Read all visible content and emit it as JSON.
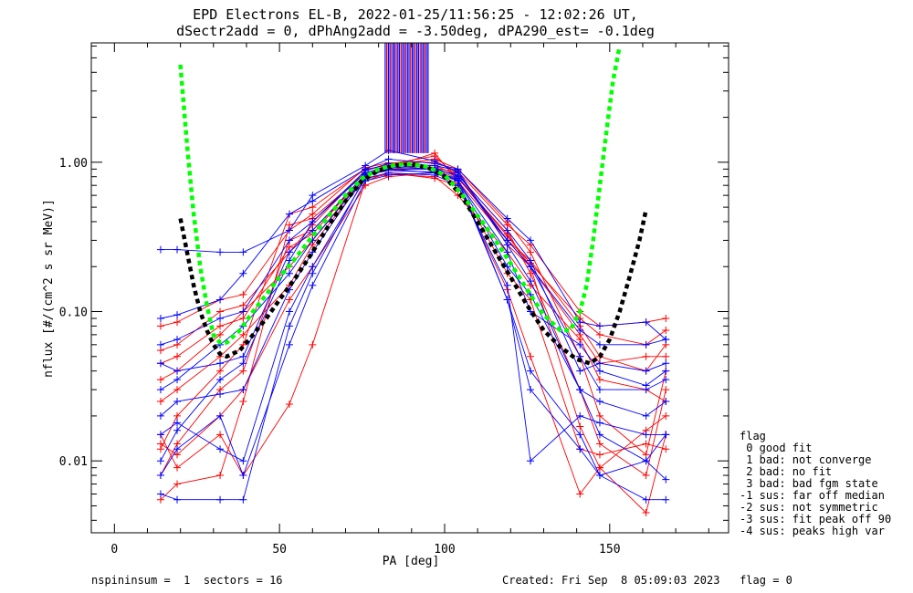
{
  "title_line1": "EPD Electrons EL-B, 2022-01-25/11:56:25 - 12:02:26 UT,",
  "title_line2": "dSectr2add = 0, dPhAng2add = -3.50deg, dPA290_est=  -0.1deg",
  "footer_left": "nspininsum =  1  sectors = 16",
  "footer_right": "Created: Fri Sep  8 05:09:03 2023   flag = 0",
  "legend": {
    "title": "flag",
    "entries": [
      " 0 good fit",
      " 1 bad: not converge",
      " 2 bad: no fit",
      " 3 bad: bad fgm state",
      "-1 sus: far off median",
      "-2 sus: not symmetric",
      "-3 sus: fit peak off 90",
      "-4 sus: peaks high var"
    ]
  },
  "colors": {
    "red_series": "#ff0000",
    "blue_series": "#0000ff",
    "fit_green": "#00ff00",
    "fit_black": "#000000"
  },
  "chart_data": {
    "type": "line",
    "xlabel": "PA [deg]",
    "ylabel": "nflux [#/(cm^2 s sr MeV)]",
    "xlim": [
      -7,
      186
    ],
    "ylim": [
      0.0033,
      6.3
    ],
    "yscale": "log",
    "xticks": [
      0,
      50,
      100,
      150
    ],
    "yticks": [
      0.01,
      0.1,
      1.0
    ],
    "yticklabels": [
      "0.01",
      "0.10",
      "1.00"
    ],
    "x_sectors": [
      14,
      19,
      32,
      39,
      53,
      60,
      76,
      83,
      97,
      104,
      119,
      126,
      141,
      147,
      161,
      167
    ],
    "series": [
      {
        "color": "red",
        "values": [
          0.0055,
          0.007,
          0.008,
          0.025,
          0.38,
          0.42,
          0.85,
          0.88,
          0.92,
          0.85,
          0.28,
          0.2,
          0.017,
          0.009,
          0.0045,
          0.015
        ]
      },
      {
        "color": "red",
        "values": [
          0.008,
          0.013,
          0.03,
          0.04,
          0.3,
          0.35,
          0.8,
          0.9,
          0.95,
          0.82,
          0.35,
          0.18,
          0.03,
          0.013,
          0.008,
          0.03
        ]
      },
      {
        "color": "red",
        "values": [
          0.012,
          0.02,
          0.04,
          0.06,
          0.45,
          0.5,
          0.9,
          0.95,
          1.05,
          0.9,
          0.4,
          0.25,
          0.05,
          0.02,
          0.011,
          0.04
        ]
      },
      {
        "color": "red",
        "values": [
          0.035,
          0.04,
          0.07,
          0.1,
          0.2,
          0.3,
          0.82,
          0.92,
          1.15,
          0.75,
          0.3,
          0.22,
          0.08,
          0.05,
          0.04,
          0.06
        ]
      },
      {
        "color": "red",
        "values": [
          0.055,
          0.06,
          0.1,
          0.11,
          0.25,
          0.38,
          0.88,
          0.97,
          1.1,
          0.8,
          0.32,
          0.21,
          0.09,
          0.07,
          0.06,
          0.075
        ]
      },
      {
        "color": "red",
        "values": [
          0.08,
          0.085,
          0.12,
          0.13,
          0.35,
          0.45,
          0.92,
          0.99,
          1.0,
          0.87,
          0.38,
          0.28,
          0.1,
          0.08,
          0.085,
          0.09
        ]
      },
      {
        "color": "red",
        "values": [
          0.015,
          0.009,
          0.015,
          0.008,
          0.024,
          0.06,
          0.75,
          0.85,
          0.78,
          0.7,
          0.14,
          0.05,
          0.006,
          0.009,
          0.016,
          0.02
        ]
      },
      {
        "color": "red",
        "values": [
          0.025,
          0.03,
          0.05,
          0.07,
          0.15,
          0.28,
          0.78,
          0.83,
          0.8,
          0.6,
          0.25,
          0.15,
          0.065,
          0.035,
          0.03,
          0.025
        ]
      },
      {
        "color": "red",
        "values": [
          0.045,
          0.05,
          0.08,
          0.09,
          0.27,
          0.33,
          0.84,
          0.9,
          0.9,
          0.78,
          0.33,
          0.2,
          0.07,
          0.045,
          0.05,
          0.05
        ]
      },
      {
        "color": "red",
        "values": [
          0.013,
          0.011,
          0.02,
          0.03,
          0.12,
          0.2,
          0.7,
          0.8,
          0.85,
          0.72,
          0.18,
          0.12,
          0.012,
          0.011,
          0.013,
          0.012
        ]
      },
      {
        "color": "blue",
        "values": [
          0.006,
          0.0055,
          0.0055,
          0.0055,
          0.08,
          0.18,
          0.8,
          0.9,
          0.85,
          0.78,
          0.12,
          0.04,
          0.015,
          0.008,
          0.0055,
          0.0055
        ]
      },
      {
        "color": "blue",
        "values": [
          0.26,
          0.26,
          0.25,
          0.25,
          0.35,
          0.6,
          0.95,
          1.2,
          1.02,
          0.85,
          0.3,
          0.2,
          0.05,
          0.03,
          0.03,
          0.035
        ]
      },
      {
        "color": "blue",
        "values": [
          0.01,
          0.016,
          0.035,
          0.045,
          0.22,
          0.4,
          0.88,
          0.98,
          0.95,
          0.88,
          0.28,
          0.16,
          0.03,
          0.015,
          0.01,
          0.015
        ]
      },
      {
        "color": "blue",
        "values": [
          0.09,
          0.095,
          0.12,
          0.18,
          0.45,
          0.55,
          0.9,
          1.05,
          0.98,
          0.9,
          0.42,
          0.3,
          0.085,
          0.08,
          0.085,
          0.065
        ]
      },
      {
        "color": "blue",
        "values": [
          0.03,
          0.035,
          0.06,
          0.08,
          0.18,
          0.3,
          0.8,
          0.9,
          0.9,
          0.75,
          0.25,
          0.1,
          0.06,
          0.04,
          0.032,
          0.04
        ]
      },
      {
        "color": "blue",
        "values": [
          0.015,
          0.018,
          0.012,
          0.01,
          0.1,
          0.2,
          0.78,
          0.85,
          0.82,
          0.7,
          0.15,
          0.01,
          0.02,
          0.018,
          0.015,
          0.015
        ]
      },
      {
        "color": "blue",
        "values": [
          0.06,
          0.065,
          0.09,
          0.1,
          0.3,
          0.4,
          0.85,
          0.95,
          0.92,
          0.8,
          0.3,
          0.2,
          0.075,
          0.06,
          0.06,
          0.065
        ]
      },
      {
        "color": "blue",
        "values": [
          0.008,
          0.012,
          0.02,
          0.008,
          0.06,
          0.15,
          0.75,
          0.82,
          0.85,
          0.75,
          0.12,
          0.03,
          0.012,
          0.008,
          0.01,
          0.0075
        ]
      },
      {
        "color": "blue",
        "values": [
          0.045,
          0.04,
          0.045,
          0.05,
          0.25,
          0.35,
          0.83,
          0.93,
          0.9,
          0.82,
          0.35,
          0.22,
          0.04,
          0.045,
          0.04,
          0.045
        ]
      },
      {
        "color": "blue",
        "values": [
          0.02,
          0.025,
          0.028,
          0.03,
          0.14,
          0.25,
          0.82,
          0.88,
          0.86,
          0.76,
          0.2,
          0.13,
          0.03,
          0.025,
          0.02,
          0.025
        ]
      }
    ],
    "fit_green": {
      "x": [
        20,
        22,
        24,
        26,
        28,
        30,
        32,
        34,
        38,
        42,
        46,
        50,
        55,
        60,
        65,
        70,
        75,
        80,
        85,
        90,
        95,
        100,
        105,
        110,
        115,
        120,
        125,
        130,
        135,
        138,
        141,
        143,
        145,
        147,
        149,
        151,
        153
      ],
      "y": [
        4.5,
        1.3,
        0.45,
        0.2,
        0.11,
        0.07,
        0.062,
        0.062,
        0.075,
        0.1,
        0.13,
        0.17,
        0.23,
        0.32,
        0.44,
        0.6,
        0.78,
        0.9,
        0.96,
        0.97,
        0.93,
        0.82,
        0.62,
        0.44,
        0.31,
        0.21,
        0.14,
        0.095,
        0.075,
        0.075,
        0.1,
        0.15,
        0.3,
        0.7,
        1.6,
        3.5,
        6.0
      ]
    },
    "fit_black": {
      "x": [
        20,
        22,
        24,
        26,
        28,
        30,
        32,
        34,
        38,
        42,
        46,
        50,
        55,
        60,
        65,
        70,
        75,
        80,
        85,
        90,
        95,
        100,
        105,
        110,
        115,
        120,
        125,
        130,
        135,
        140,
        144,
        147,
        150,
        153,
        156,
        159,
        161
      ],
      "y": [
        0.42,
        0.25,
        0.15,
        0.1,
        0.075,
        0.06,
        0.052,
        0.05,
        0.055,
        0.07,
        0.09,
        0.12,
        0.17,
        0.25,
        0.38,
        0.55,
        0.75,
        0.88,
        0.95,
        0.97,
        0.92,
        0.8,
        0.6,
        0.4,
        0.26,
        0.17,
        0.11,
        0.075,
        0.058,
        0.048,
        0.045,
        0.05,
        0.065,
        0.1,
        0.17,
        0.3,
        0.48
      ]
    },
    "vertical_lines": {
      "x_from": 82,
      "x_to": 95,
      "y_bottom": 1.15,
      "count": 28
    },
    "grid": false,
    "legend_position": "bottom-right outside"
  }
}
